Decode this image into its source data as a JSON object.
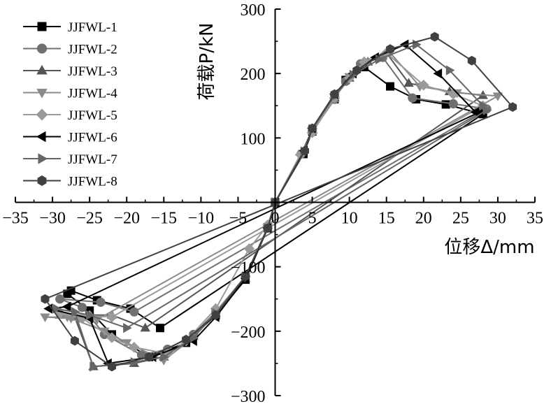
{
  "chart_data": {
    "type": "line",
    "xlabel": "位移Δ/mm",
    "ylabel": "荷载P/kN",
    "xlim": [
      -35,
      35
    ],
    "ylim": [
      -300,
      300
    ],
    "xticks": [
      -35,
      -30,
      -25,
      -20,
      -15,
      -10,
      -5,
      0,
      5,
      10,
      15,
      20,
      25,
      30,
      35
    ],
    "yticks": [
      -300,
      -200,
      -100,
      0,
      100,
      200,
      300
    ],
    "xtick_labels": [
      "−35",
      "−30",
      "−25",
      "−20",
      "−15",
      "−10",
      "−5",
      "0",
      "5",
      "10",
      "15",
      "20",
      "25",
      "30",
      "35"
    ],
    "ytick_labels": [
      "−300",
      "−200",
      "−100",
      "0",
      "100",
      "200",
      "300"
    ],
    "grid": false,
    "legend_position": "top-left",
    "series": [
      {
        "name": "JJFWL-1",
        "marker": "square",
        "color": "#000000",
        "points": [
          [
            0,
            0
          ],
          [
            3.8,
            75
          ],
          [
            5,
            110
          ],
          [
            8,
            160
          ],
          [
            9.5,
            190
          ],
          [
            12,
            210
          ],
          [
            15.5,
            180
          ],
          [
            19,
            160
          ],
          [
            23,
            152
          ],
          [
            28,
            137
          ],
          [
            -15.5,
            -195
          ],
          [
            -19.5,
            -165
          ],
          [
            -24,
            -152
          ],
          [
            -27.5,
            -137
          ],
          [
            -28,
            -142
          ],
          [
            -25,
            -168
          ],
          [
            -22,
            -205
          ],
          [
            -17,
            -240
          ],
          [
            -12,
            -218
          ],
          [
            -8,
            -175
          ],
          [
            -4,
            -120
          ],
          [
            -1,
            -40
          ],
          [
            0,
            0
          ]
        ]
      },
      {
        "name": "JJFWL-2",
        "marker": "circle",
        "color": "#707070",
        "points": [
          [
            0,
            0
          ],
          [
            3.5,
            75
          ],
          [
            5,
            110
          ],
          [
            8,
            160
          ],
          [
            9.5,
            188
          ],
          [
            11.5,
            215
          ],
          [
            14.5,
            225
          ],
          [
            18.5,
            162
          ],
          [
            24,
            153
          ],
          [
            28.5,
            145
          ],
          [
            -19,
            -170
          ],
          [
            -23.5,
            -155
          ],
          [
            -29,
            -150
          ],
          [
            -26,
            -163
          ],
          [
            -23,
            -205
          ],
          [
            -18,
            -237
          ],
          [
            -14.5,
            -228
          ],
          [
            -11,
            -205
          ],
          [
            -8,
            -170
          ],
          [
            -4,
            -115
          ],
          [
            -1,
            -40
          ],
          [
            0,
            0
          ]
        ]
      },
      {
        "name": "JJFWL-3",
        "marker": "triangle-up",
        "color": "#555555",
        "points": [
          [
            0,
            0
          ],
          [
            3.6,
            78
          ],
          [
            5,
            112
          ],
          [
            8,
            163
          ],
          [
            10,
            193
          ],
          [
            12.5,
            218
          ],
          [
            15,
            232
          ],
          [
            18,
            185
          ],
          [
            23.5,
            172
          ],
          [
            28,
            166
          ],
          [
            -17.5,
            -195
          ],
          [
            -22,
            -175
          ],
          [
            -29,
            -175
          ],
          [
            -27,
            -178
          ],
          [
            -24.5,
            -255
          ],
          [
            -19,
            -250
          ],
          [
            -15,
            -240
          ],
          [
            -11,
            -208
          ],
          [
            -8,
            -172
          ],
          [
            -4,
            -118
          ],
          [
            -1,
            -40
          ],
          [
            0,
            0
          ]
        ]
      },
      {
        "name": "JJFWL-4",
        "marker": "triangle-down",
        "color": "#8a8a8a",
        "points": [
          [
            0,
            0
          ],
          [
            3.7,
            76
          ],
          [
            5,
            110
          ],
          [
            8,
            163
          ],
          [
            10,
            195
          ],
          [
            12.5,
            218
          ],
          [
            15.5,
            232
          ],
          [
            19.5,
            180
          ],
          [
            24.5,
            170
          ],
          [
            30,
            165
          ],
          [
            -24,
            -182
          ],
          [
            -28,
            -178
          ],
          [
            -31,
            -178
          ],
          [
            -27.5,
            -180
          ],
          [
            -23,
            -200
          ],
          [
            -20,
            -218
          ],
          [
            -15,
            -245
          ],
          [
            -11,
            -210
          ],
          [
            -8,
            -170
          ],
          [
            -4,
            -115
          ],
          [
            -1,
            -38
          ],
          [
            0,
            0
          ]
        ]
      },
      {
        "name": "JJFWL-5",
        "marker": "diamond",
        "color": "#9a9a9a",
        "points": [
          [
            0,
            0
          ],
          [
            3.4,
            74
          ],
          [
            5,
            108
          ],
          [
            8,
            162
          ],
          [
            10,
            193
          ],
          [
            12,
            218
          ],
          [
            15,
            232
          ],
          [
            20,
            182
          ],
          [
            24,
            168
          ],
          [
            28,
            150
          ],
          [
            -22,
            -178
          ],
          [
            -25,
            -176
          ],
          [
            -29,
            -172
          ],
          [
            -26,
            -180
          ],
          [
            -22,
            -210
          ],
          [
            -19,
            -225
          ],
          [
            -14.5,
            -235
          ],
          [
            -12,
            -215
          ],
          [
            -8,
            -165
          ],
          [
            -3.5,
            -72
          ],
          [
            -1,
            -35
          ],
          [
            0,
            0
          ]
        ]
      },
      {
        "name": "JJFWL-6",
        "marker": "triangle-left",
        "color": "#000000",
        "points": [
          [
            0,
            0
          ],
          [
            3.9,
            80
          ],
          [
            5,
            115
          ],
          [
            8,
            168
          ],
          [
            10.5,
            200
          ],
          [
            13.5,
            225
          ],
          [
            17.5,
            245
          ],
          [
            22,
            200
          ],
          [
            27,
            140
          ],
          [
            27.5,
            140
          ],
          [
            -28,
            -162
          ],
          [
            -30.5,
            -165
          ],
          [
            -25,
            -180
          ],
          [
            -22.5,
            -250
          ],
          [
            -16.5,
            -240
          ],
          [
            -11,
            -215
          ],
          [
            -8,
            -178
          ],
          [
            -4,
            -118
          ],
          [
            -1,
            -40
          ],
          [
            0,
            0
          ]
        ]
      },
      {
        "name": "JJFWL-7",
        "marker": "triangle-right",
        "color": "#666666",
        "points": [
          [
            0,
            0
          ],
          [
            3.9,
            79
          ],
          [
            5,
            114
          ],
          [
            8,
            165
          ],
          [
            10.5,
            198
          ],
          [
            14,
            222
          ],
          [
            19,
            245
          ],
          [
            23.5,
            205
          ],
          [
            28,
            150
          ],
          [
            28.5,
            143
          ],
          [
            -20,
            -195
          ],
          [
            -25,
            -175
          ],
          [
            -29.5,
            -165
          ],
          [
            -27,
            -170
          ],
          [
            -24.5,
            -255
          ],
          [
            -19,
            -248
          ],
          [
            -15,
            -240
          ],
          [
            -11,
            -210
          ],
          [
            -8,
            -172
          ],
          [
            -4,
            -115
          ],
          [
            -1,
            -40
          ],
          [
            0,
            0
          ]
        ]
      },
      {
        "name": "JJFWL-8",
        "marker": "hexagon",
        "color": "#404040",
        "points": [
          [
            0,
            0
          ],
          [
            4,
            80
          ],
          [
            5,
            115
          ],
          [
            8,
            168
          ],
          [
            11,
            205
          ],
          [
            15.5,
            238
          ],
          [
            21.5,
            257
          ],
          [
            26.5,
            220
          ],
          [
            32,
            148
          ],
          [
            -31,
            -150
          ],
          [
            -27,
            -215
          ],
          [
            -22,
            -255
          ],
          [
            -17,
            -240
          ],
          [
            -12,
            -213
          ],
          [
            -8,
            -175
          ],
          [
            -4,
            -115
          ],
          [
            -1,
            -40
          ],
          [
            0,
            0
          ]
        ]
      }
    ]
  }
}
